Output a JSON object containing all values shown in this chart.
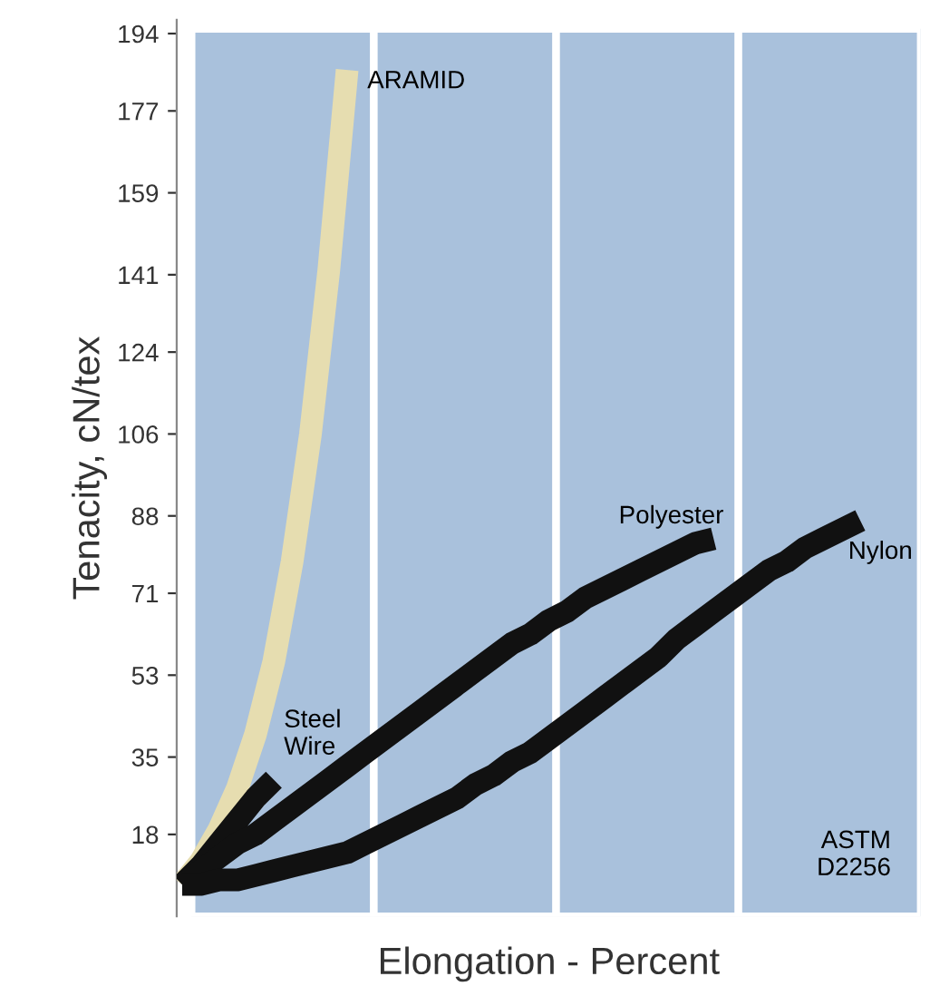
{
  "chart_data": {
    "type": "line",
    "xlabel": "Elongation - Percent",
    "ylabel": "Tenacity, cN/tex",
    "categories": [
      null,
      null,
      null,
      null,
      null,
      null,
      null,
      null,
      null,
      null,
      null,
      null,
      null,
      null,
      null,
      null,
      null,
      null,
      null,
      null,
      null,
      null,
      null,
      null,
      null,
      null,
      null,
      null,
      null,
      null,
      null,
      null,
      null,
      null,
      null,
      null,
      null,
      null,
      null,
      null,
      null
    ],
    "series": [
      {
        "name": "ARAMID",
        "color": "#e6ddb0",
        "values": [
          7,
          12,
          19,
          28,
          40,
          56,
          78,
          106,
          142,
          186,
          null,
          null,
          null,
          null,
          null,
          null,
          null,
          null,
          null,
          null,
          null,
          null,
          null,
          null,
          null,
          null,
          null,
          null,
          null,
          null,
          null,
          null,
          null,
          null,
          null,
          null,
          null,
          null,
          null,
          null,
          null
        ]
      },
      {
        "name": "Steel\nWire",
        "color": "#111111",
        "values": [
          7,
          11,
          16,
          21,
          26,
          30,
          null,
          null,
          null,
          null,
          null,
          null,
          null,
          null,
          null,
          null,
          null,
          null,
          null,
          null,
          null,
          null,
          null,
          null,
          null,
          null,
          null,
          null,
          null,
          null,
          null,
          null,
          null,
          null,
          null,
          null,
          null,
          null,
          null,
          null,
          null
        ]
      },
      {
        "name": "Polyester",
        "color": "#111111",
        "values": [
          7,
          10,
          13,
          16,
          18,
          21,
          24,
          27,
          30,
          33,
          36,
          39,
          42,
          45,
          48,
          51,
          54,
          57,
          60,
          62,
          65,
          67,
          70,
          72,
          74,
          76,
          78,
          80,
          82,
          83,
          null,
          null,
          null,
          null,
          null,
          null,
          null,
          null,
          null,
          null,
          null
        ]
      },
      {
        "name": "Nylon",
        "color": "#111111",
        "values": [
          7,
          7,
          8,
          8,
          9,
          10,
          11,
          12,
          13,
          14,
          16,
          18,
          20,
          22,
          24,
          26,
          29,
          31,
          34,
          36,
          39,
          42,
          45,
          48,
          51,
          54,
          57,
          61,
          64,
          67,
          70,
          73,
          76,
          78,
          81,
          83,
          85,
          87,
          null,
          null,
          null
        ]
      }
    ],
    "ylim": [
      0,
      197
    ],
    "yticks": [
      18,
      35,
      53,
      71,
      88,
      106,
      124,
      141,
      159,
      177,
      194
    ],
    "annotations": [
      "ASTM\nD2256"
    ],
    "tick_labels": "y"
  }
}
